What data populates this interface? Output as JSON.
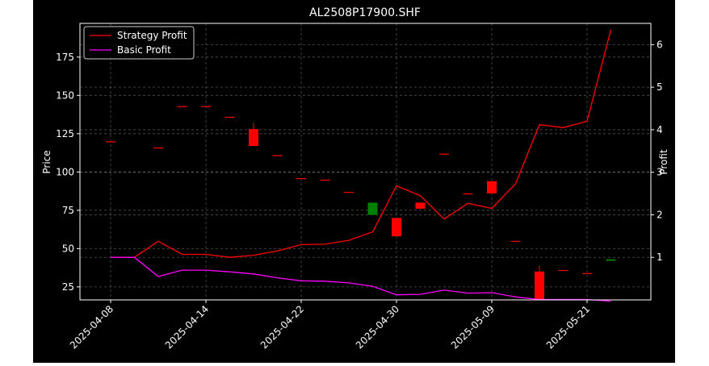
{
  "chart_data": {
    "type": "candlestick_with_lines",
    "title": "AL2508P17900.SHF",
    "xlabel": "",
    "ylabel_left": "Price",
    "ylabel_right": "Profit",
    "ylim_left": [
      16.5,
      197
    ],
    "ylim_right": [
      0,
      6.5
    ],
    "yticks_left": [
      "25",
      "50",
      "75",
      "100",
      "125",
      "150",
      "175"
    ],
    "yticks_right": [
      "1",
      "2",
      "3",
      "4",
      "5",
      "6"
    ],
    "xticks": [
      "2025-04-08",
      "2025-04-14",
      "2025-04-22",
      "2025-04-30",
      "2025-05-09",
      "2025-05-21"
    ],
    "grid": true,
    "legend_position": "top-left",
    "up_color": "#008000",
    "down_color": "#ff0000",
    "candles": [
      {
        "i": 0,
        "open": 120,
        "high": 120,
        "low": 120,
        "close": 120
      },
      {
        "i": 2,
        "open": 116,
        "high": 116,
        "low": 116,
        "close": 116
      },
      {
        "i": 3,
        "open": 143,
        "high": 143,
        "low": 143,
        "close": 143
      },
      {
        "i": 4,
        "open": 143,
        "high": 143,
        "low": 143,
        "close": 143
      },
      {
        "i": 5,
        "open": 136,
        "high": 136,
        "low": 136,
        "close": 136
      },
      {
        "i": 6,
        "open": 128,
        "high": 132,
        "low": 117,
        "close": 117
      },
      {
        "i": 7,
        "open": 111,
        "high": 111,
        "low": 111,
        "close": 111
      },
      {
        "i": 8,
        "open": 96,
        "high": 96,
        "low": 96,
        "close": 96
      },
      {
        "i": 9,
        "open": 95,
        "high": 95,
        "low": 95,
        "close": 95
      },
      {
        "i": 10,
        "open": 87,
        "high": 87,
        "low": 87,
        "close": 87
      },
      {
        "i": 11,
        "open": 72,
        "high": 80,
        "low": 72,
        "close": 80
      },
      {
        "i": 12,
        "open": 70,
        "high": 70,
        "low": 58,
        "close": 58
      },
      {
        "i": 13,
        "open": 80,
        "high": 80,
        "low": 76,
        "close": 76
      },
      {
        "i": 14,
        "open": 112,
        "high": 112,
        "low": 112,
        "close": 112
      },
      {
        "i": 15,
        "open": 86,
        "high": 86,
        "low": 86,
        "close": 86
      },
      {
        "i": 16,
        "open": 94,
        "high": 94,
        "low": 86,
        "close": 86
      },
      {
        "i": 17,
        "open": 55,
        "high": 55,
        "low": 55,
        "close": 55
      },
      {
        "i": 18,
        "open": 35,
        "high": 39,
        "low": 16.5,
        "close": 16.5
      },
      {
        "i": 19,
        "open": 36,
        "high": 36,
        "low": 36,
        "close": 36
      },
      {
        "i": 20,
        "open": 34,
        "high": 34,
        "low": 34,
        "close": 34
      },
      {
        "i": 21,
        "open": 42,
        "high": 43,
        "low": 42,
        "close": 43
      }
    ],
    "series": [
      {
        "name": "Strategy Profit",
        "color": "#ff0000",
        "values": [
          1.0,
          1.0,
          1.38,
          1.07,
          1.07,
          1.0,
          1.05,
          1.15,
          1.3,
          1.31,
          1.4,
          1.6,
          2.68,
          2.45,
          1.9,
          2.27,
          2.15,
          2.73,
          4.12,
          4.05,
          4.2,
          6.35
        ]
      },
      {
        "name": "Basic Profit",
        "color": "#ff00ff",
        "values": [
          1.0,
          1.0,
          0.55,
          0.7,
          0.7,
          0.66,
          0.61,
          0.52,
          0.45,
          0.44,
          0.4,
          0.32,
          0.12,
          0.13,
          0.23,
          0.16,
          0.17,
          0.07,
          0.01,
          0.01,
          0.01,
          -0.03
        ]
      }
    ]
  }
}
